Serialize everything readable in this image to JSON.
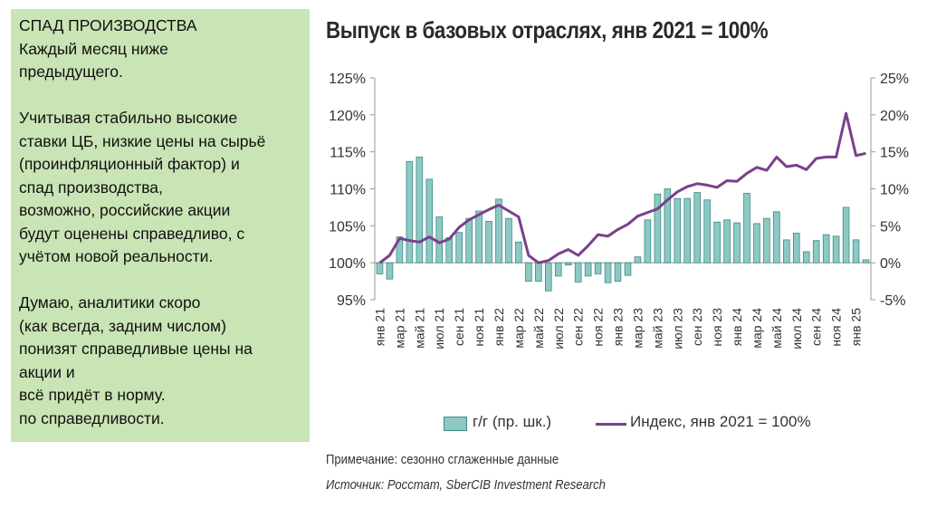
{
  "note": {
    "lines": [
      "СПАД ПРОИЗВОДСТВА",
      "Каждый месяц ниже",
      "предыдущего.",
      "",
      "Учитывая стабильно высокие",
      "ставки ЦБ, низкие цены на сырьё",
      "(проинфляционный фактор)  и",
      "спад производства,",
      "возможно, российские акции",
      "будут оценены справедливо, с",
      "учётом новой реальности.",
      "",
      "Думаю, аналитики скоро",
      "(как всегда, задним числом)",
      "понизят справедливые цены на",
      "акции и",
      "всё придёт в норму.",
      "по справедливости."
    ]
  },
  "footer": {
    "note": "Примечание: сезонно сглаженные данные",
    "source": "Источник: Росстат, SberCIB Investment Research"
  },
  "colors": {
    "panel": "#c9e4b5",
    "bar_fill": "#8cc9c4",
    "bar_stroke": "#3d8a86",
    "line": "#7b3f8c"
  },
  "chart_data": {
    "type": "bar+line",
    "title": "Выпуск в базовых отраслях, янв 2021 = 100%",
    "left_axis": {
      "ylim": [
        95,
        125
      ],
      "ticks": [
        95,
        100,
        105,
        110,
        115,
        120,
        125
      ],
      "tick_labels": [
        "95%",
        "100%",
        "105%",
        "110%",
        "115%",
        "120%",
        "125%"
      ]
    },
    "right_axis": {
      "ylim": [
        -5,
        25
      ],
      "ticks": [
        -5,
        0,
        5,
        10,
        15,
        20,
        25
      ],
      "tick_labels": [
        "-5%",
        "0%",
        "5%",
        "10%",
        "15%",
        "20%",
        "25%"
      ]
    },
    "x_labels": [
      "янв 21",
      "мар 21",
      "май 21",
      "июл 21",
      "сен 21",
      "ноя 21",
      "янв 22",
      "мар 22",
      "май 22",
      "июл 22",
      "сен 22",
      "ноя 22",
      "янв 23",
      "мар 23",
      "май 23",
      "июл 23",
      "сен 23",
      "ноя 23",
      "янв 24",
      "мар 24",
      "май 24",
      "июл 24",
      "сен 24",
      "ноя 24",
      "янв 25"
    ],
    "months": [
      "янв 21",
      "фев 21",
      "мар 21",
      "апр 21",
      "май 21",
      "июн 21",
      "июл 21",
      "авг 21",
      "сен 21",
      "окт 21",
      "ноя 21",
      "дек 21",
      "янв 22",
      "фев 22",
      "мар 22",
      "апр 22",
      "май 22",
      "июн 22",
      "июл 22",
      "авг 22",
      "сен 22",
      "окт 22",
      "ноя 22",
      "дек 22",
      "янв 23",
      "фев 23",
      "мар 23",
      "апр 23",
      "май 23",
      "июн 23",
      "июл 23",
      "авг 23",
      "сен 23",
      "окт 23",
      "ноя 23",
      "дек 23",
      "янв 24",
      "фев 24",
      "мар 24",
      "апр 24",
      "май 24",
      "июн 24",
      "июл 24",
      "авг 24",
      "сен 24",
      "окт 24",
      "ноя 24",
      "дек 24",
      "янв 25",
      "фев 25"
    ],
    "series": [
      {
        "name": "г/г (пр. шк.)",
        "type": "bar",
        "axis": "right",
        "values": [
          -1.5,
          -2.2,
          3.5,
          13.7,
          14.3,
          11.3,
          6.2,
          3.4,
          4.1,
          6.0,
          7.0,
          5.6,
          8.6,
          6.0,
          2.8,
          -2.5,
          -2.5,
          -3.8,
          -1.8,
          -0.3,
          -2.6,
          -1.8,
          -1.5,
          -2.7,
          -2.5,
          -1.7,
          0.8,
          5.8,
          9.3,
          10.0,
          8.7,
          8.7,
          9.5,
          8.5,
          5.5,
          5.8,
          5.4,
          9.4,
          5.3,
          6.0,
          6.9,
          3.1,
          4.0,
          1.5,
          3.0,
          3.8,
          3.6,
          7.5,
          3.1,
          0.4
        ]
      },
      {
        "name": "Индекс, янв 2021 = 100%",
        "type": "line",
        "axis": "left",
        "values": [
          100.0,
          101.0,
          103.3,
          103.0,
          102.8,
          103.5,
          102.7,
          103.2,
          104.8,
          105.8,
          106.5,
          107.2,
          107.8,
          107.0,
          106.2,
          101.0,
          100.0,
          100.3,
          101.2,
          101.8,
          101.0,
          102.3,
          103.8,
          103.6,
          104.5,
          105.2,
          106.3,
          106.8,
          107.3,
          108.5,
          109.6,
          110.3,
          110.7,
          110.5,
          110.2,
          111.1,
          111.0,
          112.1,
          112.9,
          112.5,
          114.3,
          113.0,
          113.2,
          112.6,
          114.1,
          114.3,
          114.3,
          120.2,
          114.5,
          114.8
        ]
      }
    ],
    "legend": {
      "placement": "bottom"
    },
    "grid": false
  }
}
